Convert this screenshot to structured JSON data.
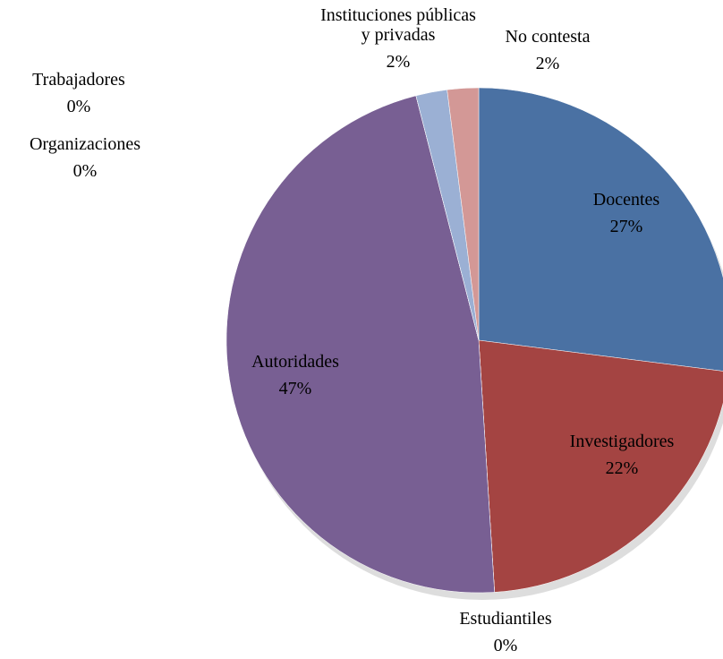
{
  "chart_data": {
    "type": "pie",
    "categories": [
      "Docentes",
      "Investigadores",
      "Estudiantiles",
      "Autoridades",
      "Trabajadores",
      "Organizaciones",
      "Instituciones públicas y privadas",
      "No contesta"
    ],
    "values": [
      27,
      22,
      0,
      47,
      0,
      0,
      2,
      2
    ],
    "value_labels": [
      "27%",
      "22%",
      "0%",
      "47%",
      "0%",
      "0%",
      "2%",
      "2%"
    ],
    "colors": [
      "#4a71a3",
      "#a44442",
      "#8aa94a",
      "#785f93",
      "#4aa0b8",
      "#e8913c",
      "#9bb0d4",
      "#d39896"
    ]
  }
}
